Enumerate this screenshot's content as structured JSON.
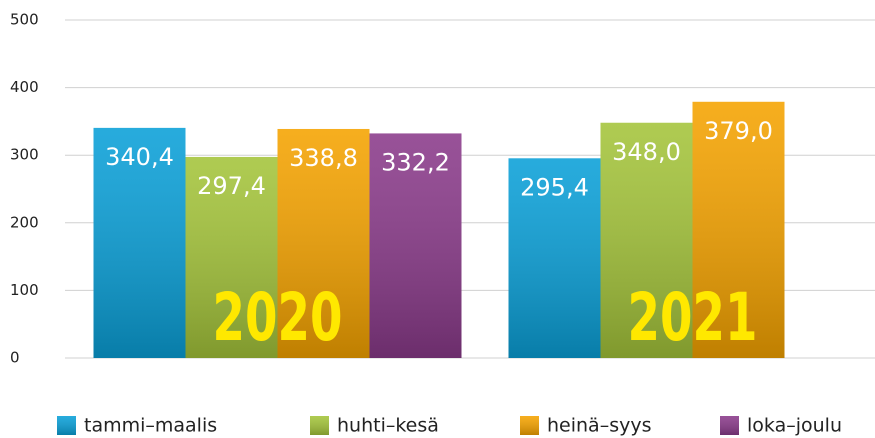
{
  "chart_data": {
    "type": "bar",
    "categories": [
      "2020",
      "2021"
    ],
    "series": [
      {
        "name": "tammi–maalis",
        "color": "#0aa0d8",
        "values": [
          340.4,
          295.4
        ],
        "value_labels": [
          "340,4",
          "295,4"
        ]
      },
      {
        "name": "huhti–kesä",
        "color": "#a4c43a",
        "values": [
          297.4,
          348.0
        ],
        "value_labels": [
          "297,4",
          "348,0"
        ]
      },
      {
        "name": "heinä–syys",
        "color": "#f5a300",
        "values": [
          338.8,
          379.0
        ],
        "value_labels": [
          "338,8",
          "379,0"
        ]
      },
      {
        "name": "loka–joulu",
        "color": "#8a3a8a",
        "values": [
          332.2,
          null
        ],
        "value_labels": [
          "332,2",
          null
        ]
      }
    ],
    "ylim": [
      0,
      500
    ],
    "yticks": [
      0,
      100,
      200,
      300,
      400,
      500
    ],
    "grid": true
  }
}
